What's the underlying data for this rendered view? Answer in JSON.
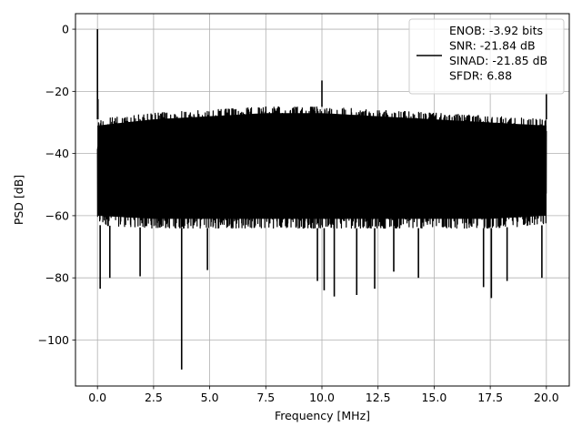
{
  "chart_data": {
    "type": "line",
    "title": "",
    "xlabel": "Frequency [MHz]",
    "ylabel": "PSD [dB]",
    "xlim": [
      -0.98,
      21.02
    ],
    "ylim": [
      -114.8,
      5
    ],
    "xticks": [
      0.0,
      2.5,
      5.0,
      7.5,
      10.0,
      12.5,
      15.0,
      17.5,
      20.0
    ],
    "xtick_labels": [
      "0.0",
      "2.5",
      "5.0",
      "7.5",
      "10.0",
      "12.5",
      "15.0",
      "17.5",
      "20.0"
    ],
    "yticks": [
      0,
      -20,
      -40,
      -60,
      -80,
      -100
    ],
    "ytick_labels": [
      "0",
      "−20",
      "−40",
      "−60",
      "−80",
      "−100"
    ],
    "grid": true,
    "legend_position": "top-right",
    "line_color": "#000000",
    "series": [
      {
        "name": "ENOB: -3.92 bits\nSNR: -21.84 dB\nSINAD: -21.85 dB\nSFDR: 6.88",
        "description": "Noise floor spanning roughly -65 to -27 dB across 0-20 MHz with a fundamental spike at 0 MHz",
        "x_range": [
          0.0,
          20.0
        ],
        "noise_upper_envelope": [
          {
            "x": 0.0,
            "y": -29
          },
          {
            "x": 2.5,
            "y": -27
          },
          {
            "x": 5.0,
            "y": -26
          },
          {
            "x": 7.5,
            "y": -25
          },
          {
            "x": 10.0,
            "y": -25
          },
          {
            "x": 12.5,
            "y": -26
          },
          {
            "x": 15.0,
            "y": -27
          },
          {
            "x": 17.5,
            "y": -28
          },
          {
            "x": 20.0,
            "y": -29
          }
        ],
        "noise_lower_envelope": [
          {
            "x": 0.0,
            "y": -63
          },
          {
            "x": 2.5,
            "y": -64
          },
          {
            "x": 5.0,
            "y": -64
          },
          {
            "x": 7.5,
            "y": -64
          },
          {
            "x": 10.0,
            "y": -64
          },
          {
            "x": 12.5,
            "y": -64
          },
          {
            "x": 15.0,
            "y": -64
          },
          {
            "x": 17.5,
            "y": -64
          },
          {
            "x": 20.0,
            "y": -63
          }
        ],
        "peaks": [
          {
            "x": 0.0,
            "y": 0
          },
          {
            "x": 10.0,
            "y": -16.5
          },
          {
            "x": 20.0,
            "y": -20.5
          },
          {
            "x": 0.02,
            "y": -22.5
          }
        ],
        "dips": [
          {
            "x": 0.12,
            "y": -83.5
          },
          {
            "x": 0.55,
            "y": -80
          },
          {
            "x": 1.9,
            "y": -79.5
          },
          {
            "x": 3.75,
            "y": -109.5
          },
          {
            "x": 4.9,
            "y": -77.5
          },
          {
            "x": 9.8,
            "y": -81
          },
          {
            "x": 10.1,
            "y": -84
          },
          {
            "x": 10.55,
            "y": -86
          },
          {
            "x": 11.55,
            "y": -85.5
          },
          {
            "x": 12.35,
            "y": -83.5
          },
          {
            "x": 13.2,
            "y": -78
          },
          {
            "x": 14.3,
            "y": -80
          },
          {
            "x": 17.2,
            "y": -83
          },
          {
            "x": 17.55,
            "y": -86.5
          },
          {
            "x": 18.25,
            "y": -81
          },
          {
            "x": 19.8,
            "y": -80
          }
        ]
      }
    ]
  }
}
